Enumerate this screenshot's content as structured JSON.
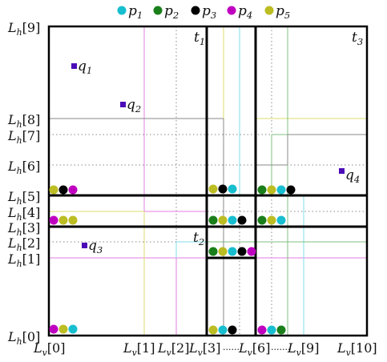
{
  "legend": [
    {
      "label": "p1",
      "sub": "1",
      "color": "#17becf"
    },
    {
      "label": "p2",
      "sub": "2",
      "color": "#1a7f1a"
    },
    {
      "label": "p3",
      "sub": "3",
      "color": "#000000"
    },
    {
      "label": "p4",
      "sub": "4",
      "color": "#c000c0"
    },
    {
      "label": "p5",
      "sub": "5",
      "color": "#bcbd22"
    }
  ],
  "y_labels": [
    {
      "text": "Lh[9]",
      "base": "L",
      "sub": "h",
      "idx": "[9]"
    },
    {
      "text": "Lh[8]",
      "base": "L",
      "sub": "h",
      "idx": "[8]"
    },
    {
      "text": "Lh[7]",
      "base": "L",
      "sub": "h",
      "idx": "[7]"
    },
    {
      "text": "Lh[6]",
      "base": "L",
      "sub": "h",
      "idx": "[6]"
    },
    {
      "text": "Lh[5]",
      "base": "L",
      "sub": "h",
      "idx": "[5]"
    },
    {
      "text": "Lh[4]",
      "base": "L",
      "sub": "h",
      "idx": "[4]"
    },
    {
      "text": "Lh[3]",
      "base": "L",
      "sub": "h",
      "idx": "[3]"
    },
    {
      "text": "Lh[2]",
      "base": "L",
      "sub": "h",
      "idx": "[2]"
    },
    {
      "text": "Lh[1]",
      "base": "L",
      "sub": "h",
      "idx": "[1]"
    },
    {
      "text": "Lh[0]",
      "base": "L",
      "sub": "h",
      "idx": "[0]"
    }
  ],
  "x_labels": [
    {
      "text": "Lv[0]",
      "base": "L",
      "sub": "v",
      "idx": "[0]"
    },
    {
      "text": "Lv[1]",
      "base": "L",
      "sub": "v",
      "idx": "[1]"
    },
    {
      "text": "Lv[2]",
      "base": "L",
      "sub": "v",
      "idx": "[2]"
    },
    {
      "text": "Lv[3]",
      "base": "L",
      "sub": "v",
      "idx": "[3]"
    },
    {
      "text": "Lv[6]",
      "base": "L",
      "sub": "v",
      "idx": "[6]"
    },
    {
      "text": "Lv[9]",
      "base": "L",
      "sub": "v",
      "idx": "[9]"
    },
    {
      "text": "Lv[10]",
      "base": "L",
      "sub": "v",
      "idx": "[10]"
    }
  ],
  "x_dots": ".......",
  "tiles": [
    {
      "label": "t1",
      "base": "t",
      "sub": "1"
    },
    {
      "label": "t2",
      "base": "t",
      "sub": "2"
    },
    {
      "label": "t3",
      "base": "t",
      "sub": "3"
    }
  ],
  "queries": [
    {
      "label": "q1",
      "base": "q",
      "sub": "1"
    },
    {
      "label": "q2",
      "base": "q",
      "sub": "2"
    },
    {
      "label": "q3",
      "base": "q",
      "sub": "3"
    },
    {
      "label": "q4",
      "base": "q",
      "sub": "4"
    }
  ],
  "marker_rows": [
    [
      "p5",
      "p3",
      "p4"
    ],
    [
      "p5",
      "p3",
      "p1"
    ],
    [
      "p2",
      "p5",
      "p1",
      "p3"
    ],
    [
      "p4",
      "p5",
      "p5"
    ],
    [
      "p2",
      "p5",
      "p1",
      "p3"
    ],
    [
      "p2",
      "p5",
      "p1"
    ],
    [
      "p2",
      "p5",
      "p1",
      "p3",
      "p4"
    ],
    [
      "p4",
      "p5",
      "p1"
    ],
    [
      "p5",
      "p1",
      "p3"
    ],
    [
      "p4",
      "p1",
      "p2"
    ]
  ],
  "colors": {
    "query": "#4b0bb8",
    "axis": "#000000",
    "gray": "#888888",
    "cyan": "#7fdfe8",
    "pink": "#e07fe0",
    "yellow": "#dede70",
    "green": "#7fbf7f"
  }
}
